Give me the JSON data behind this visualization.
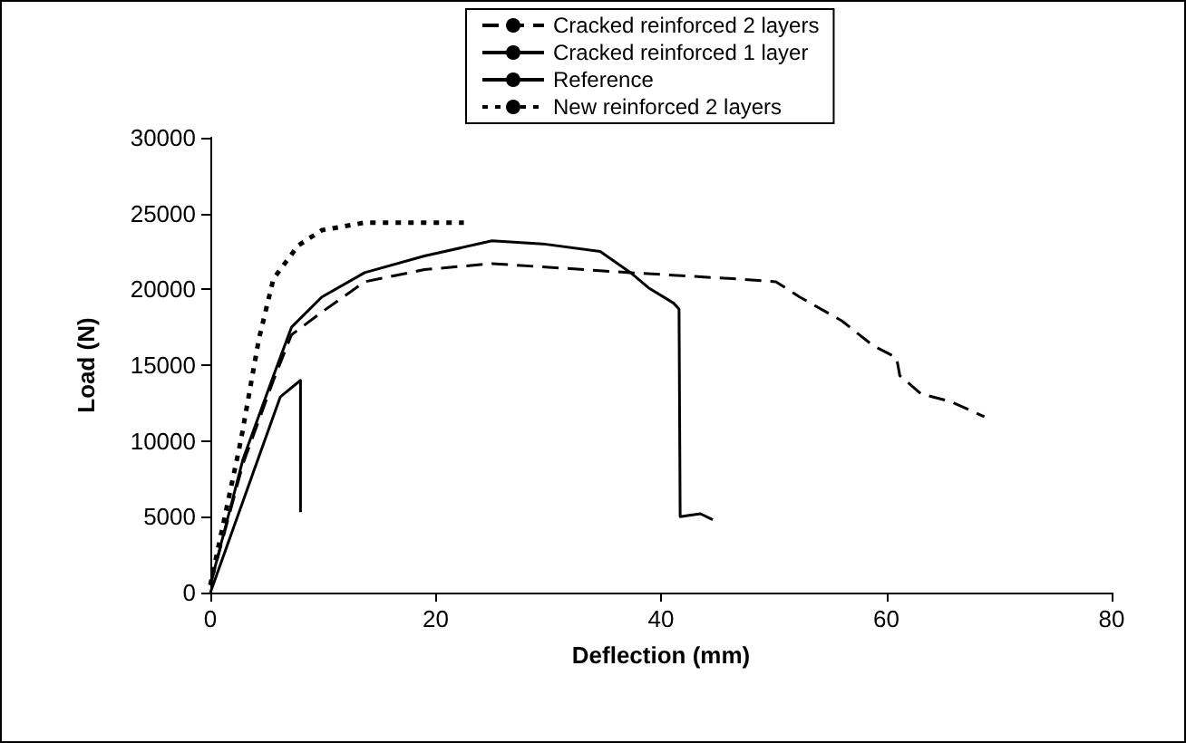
{
  "chart_data": {
    "type": "line",
    "xlabel": "Deflection (mm)",
    "ylabel": "Load (N)",
    "xlim": [
      0,
      80
    ],
    "xticks": [
      0,
      20,
      40,
      60,
      80
    ],
    "ylim": [
      0,
      30000
    ],
    "yticks": [
      0,
      5000,
      10000,
      15000,
      20000,
      25000,
      30000
    ],
    "grid": false,
    "legend": "top right",
    "marker": "none",
    "series": [
      {
        "name": "Cracked reinforced 2 layers",
        "color": "#000000",
        "line_style": "dashed",
        "x": [
          0,
          2.9,
          5.6,
          7.2,
          9.9,
          13.7,
          19,
          25,
          37.3,
          46.4,
          50.2,
          52.3,
          56.1,
          58.8,
          60.9,
          61.2,
          63.1,
          65.7,
          68.7
        ],
        "values": [
          500,
          8500,
          14000,
          17000,
          18500,
          20500,
          21300,
          21700,
          21100,
          20700,
          20500,
          19500,
          17900,
          16300,
          15500,
          14300,
          13100,
          12600,
          11600
        ]
      },
      {
        "name": "Cracked reinforced 1 layer",
        "color": "#000000",
        "line_style": "solid",
        "x": [
          0,
          2.9,
          5.6,
          7.2,
          9.9,
          13.7,
          19,
          25,
          29.5,
          34.6,
          37.3,
          38.9,
          41.1,
          41.6,
          41.7,
          42.5,
          43.5,
          44.6
        ],
        "values": [
          500,
          8800,
          14300,
          17500,
          19500,
          21100,
          22200,
          23200,
          23000,
          22500,
          21100,
          20100,
          19100,
          18700,
          5000,
          5100,
          5200,
          4800
        ]
      },
      {
        "name": "Reference",
        "color": "#000000",
        "line_style": "solid",
        "x": [
          0,
          6.2,
          8,
          8
        ],
        "values": [
          0,
          12900,
          14000,
          5300
        ]
      },
      {
        "name": "New reinforced 2 layers",
        "color": "#000000",
        "line_style": "dotted",
        "x": [
          0,
          2.7,
          4.3,
          5.6,
          7.8,
          9.9,
          13.7,
          22.5
        ],
        "values": [
          500,
          10000,
          16700,
          20700,
          22900,
          23900,
          24400,
          24400
        ]
      }
    ]
  }
}
